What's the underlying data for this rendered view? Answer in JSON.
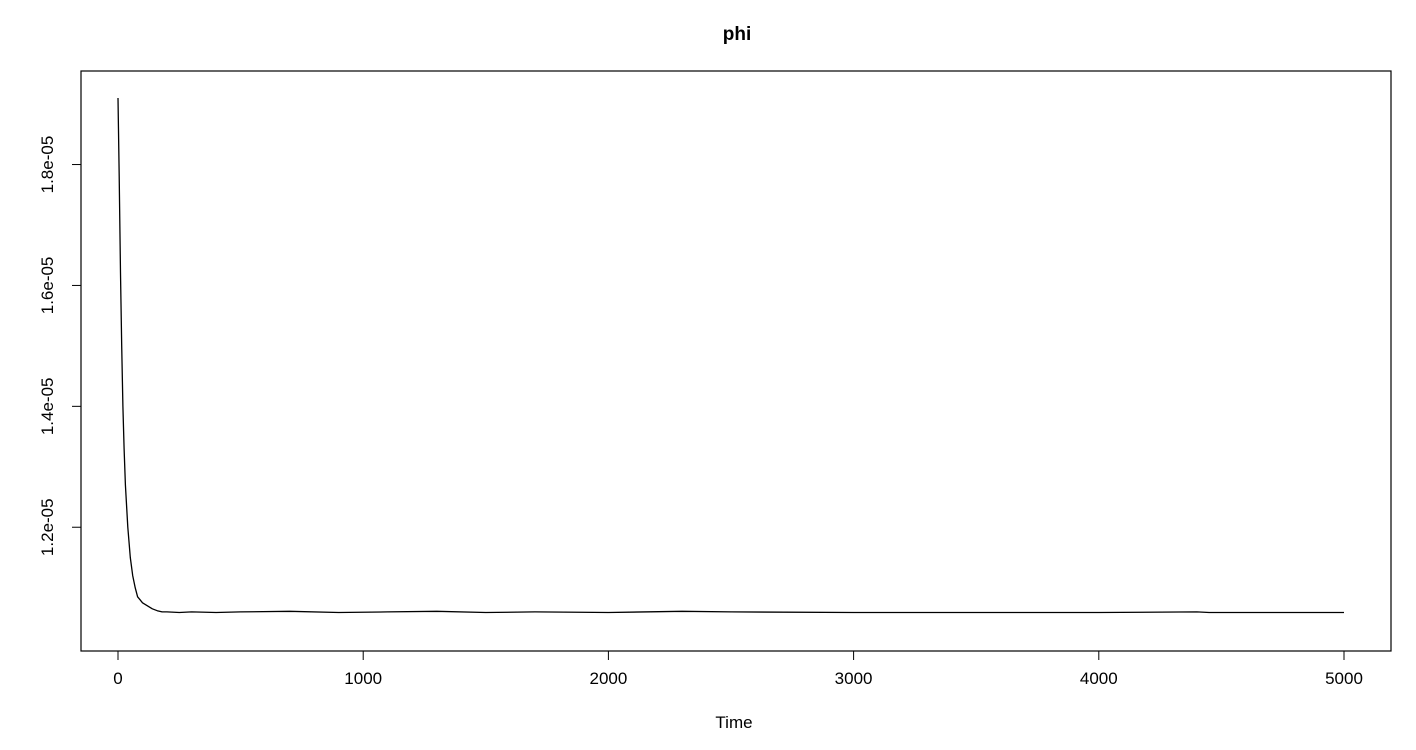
{
  "chart_data": {
    "type": "line",
    "title": "phi",
    "xlabel": "Time",
    "ylabel": "",
    "xlim": [
      0,
      5000
    ],
    "ylim": [
      1.03e-05,
      1.92e-05
    ],
    "x_ticks": [
      0,
      1000,
      2000,
      3000,
      4000,
      5000
    ],
    "x_tick_labels": [
      "0",
      "1000",
      "2000",
      "3000",
      "4000",
      "5000"
    ],
    "y_ticks": [
      1.2e-05,
      1.4e-05,
      1.6e-05,
      1.8e-05
    ],
    "y_tick_labels": [
      "1.2e-05",
      "1.4e-05",
      "1.6e-05",
      "1.8e-05"
    ],
    "grid": false,
    "legend": "none",
    "series": [
      {
        "color": "#000000",
        "x": [
          0,
          5,
          10,
          15,
          20,
          25,
          30,
          40,
          50,
          60,
          70,
          80,
          90,
          100,
          120,
          140,
          160,
          180,
          200,
          250,
          300,
          400,
          500,
          700,
          900,
          1100,
          1300,
          1500,
          1700,
          2000,
          2300,
          2500,
          3000,
          3500,
          4000,
          4400,
          4450,
          4500,
          5000
        ],
        "y": [
          1.91e-05,
          1.78e-05,
          1.62e-05,
          1.5e-05,
          1.4e-05,
          1.33e-05,
          1.27e-05,
          1.2e-05,
          1.15e-05,
          1.12e-05,
          1.1e-05,
          1.085e-05,
          1.08e-05,
          1.075e-05,
          1.07e-05,
          1.065e-05,
          1.062e-05,
          1.06e-05,
          1.06e-05,
          1.059e-05,
          1.06e-05,
          1.059e-05,
          1.06e-05,
          1.061e-05,
          1.059e-05,
          1.06e-05,
          1.061e-05,
          1.059e-05,
          1.06e-05,
          1.059e-05,
          1.061e-05,
          1.06e-05,
          1.059e-05,
          1.059e-05,
          1.059e-05,
          1.06e-05,
          1.059e-05,
          1.059e-05,
          1.059e-05
        ]
      }
    ]
  }
}
